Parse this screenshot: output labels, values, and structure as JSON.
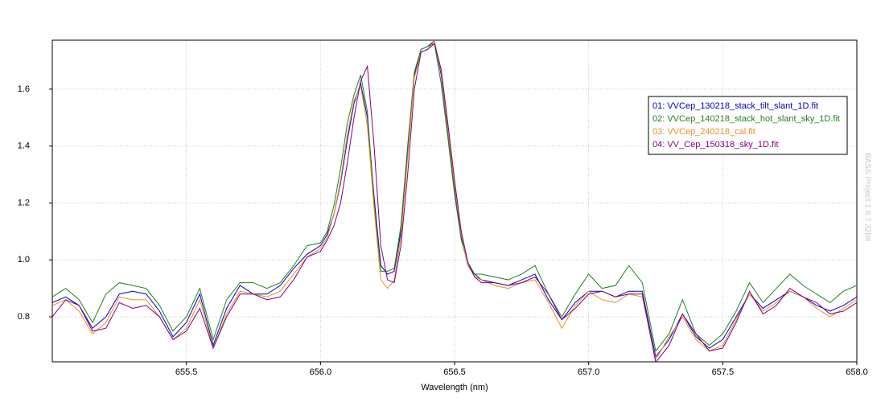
{
  "chart_data": {
    "type": "line",
    "xlabel": "Wavelength (nm)",
    "watermark": "BASS Project 1.9.7 32bit",
    "xlim": [
      655.0,
      658.0
    ],
    "ylim": [
      0.642,
      1.772
    ],
    "xticks": [
      655.5,
      {
        "value": 656.0,
        "label": "656.0"
      },
      656.5,
      {
        "value": 657.0,
        "label": "657.0"
      },
      657.5,
      {
        "value": 658.0,
        "label": "658.0"
      }
    ],
    "yticks": [
      0.8,
      {
        "value": 1.0,
        "label": "1.0"
      },
      1.2,
      1.4,
      1.6
    ],
    "grid": true,
    "legend": "upper right",
    "x": [
      655.0,
      655.05,
      655.1,
      655.15,
      655.2,
      655.25,
      655.3,
      655.35,
      655.4,
      655.45,
      655.5,
      655.55,
      655.6,
      655.65,
      655.7,
      655.75,
      655.8,
      655.85,
      655.9,
      655.95,
      656.0,
      656.025,
      656.05,
      656.075,
      656.1,
      656.125,
      656.15,
      656.175,
      656.2,
      656.225,
      656.25,
      656.275,
      656.3,
      656.325,
      656.35,
      656.375,
      656.4,
      656.425,
      656.45,
      656.475,
      656.5,
      656.525,
      656.55,
      656.575,
      656.6,
      656.65,
      656.7,
      656.75,
      656.8,
      656.85,
      656.9,
      656.95,
      657.0,
      657.05,
      657.1,
      657.15,
      657.2,
      657.25,
      657.3,
      657.35,
      657.4,
      657.45,
      657.5,
      657.55,
      657.6,
      657.65,
      657.7,
      657.75,
      657.8,
      657.85,
      657.9,
      657.95,
      658.0
    ],
    "series": [
      {
        "name": "01: VVCep_130218_stack_tilt_slant_1D.fit",
        "color": "#0000c0",
        "values": [
          0.85,
          0.87,
          0.84,
          0.76,
          0.8,
          0.88,
          0.89,
          0.88,
          0.82,
          0.73,
          0.78,
          0.88,
          0.7,
          0.83,
          0.91,
          0.88,
          0.88,
          0.91,
          0.97,
          1.02,
          1.05,
          1.09,
          1.16,
          1.27,
          1.42,
          1.55,
          1.62,
          1.5,
          1.22,
          0.98,
          0.95,
          0.96,
          1.1,
          1.38,
          1.65,
          1.74,
          1.75,
          1.77,
          1.65,
          1.45,
          1.25,
          1.08,
          0.98,
          0.95,
          0.93,
          0.92,
          0.91,
          0.93,
          0.95,
          0.86,
          0.79,
          0.85,
          0.89,
          0.89,
          0.87,
          0.89,
          0.89,
          0.66,
          0.72,
          0.81,
          0.73,
          0.69,
          0.72,
          0.8,
          0.88,
          0.83,
          0.86,
          0.89,
          0.87,
          0.84,
          0.82,
          0.84,
          0.87
        ]
      },
      {
        "name": "02: VVCep_140218_stack_hot_slant_sky_1D.fit",
        "color": "#208020",
        "values": [
          0.87,
          0.9,
          0.86,
          0.78,
          0.88,
          0.92,
          0.91,
          0.9,
          0.84,
          0.75,
          0.8,
          0.9,
          0.72,
          0.86,
          0.92,
          0.92,
          0.9,
          0.92,
          0.98,
          1.05,
          1.06,
          1.1,
          1.19,
          1.32,
          1.48,
          1.58,
          1.65,
          1.52,
          1.2,
          0.96,
          0.96,
          0.97,
          1.12,
          1.4,
          1.66,
          1.74,
          1.75,
          1.76,
          1.62,
          1.43,
          1.23,
          1.07,
          0.99,
          0.95,
          0.95,
          0.94,
          0.93,
          0.95,
          0.98,
          0.88,
          0.8,
          0.88,
          0.95,
          0.9,
          0.91,
          0.98,
          0.92,
          0.68,
          0.74,
          0.86,
          0.74,
          0.7,
          0.74,
          0.82,
          0.92,
          0.85,
          0.9,
          0.95,
          0.91,
          0.88,
          0.85,
          0.89,
          0.91
        ]
      },
      {
        "name": "03: VVCep_240218_cal.fit",
        "color": "#e89020",
        "values": [
          0.84,
          0.86,
          0.82,
          0.74,
          0.78,
          0.87,
          0.86,
          0.86,
          0.8,
          0.72,
          0.76,
          0.86,
          0.69,
          0.81,
          0.89,
          0.88,
          0.87,
          0.89,
          0.95,
          1.01,
          1.04,
          1.08,
          1.16,
          1.28,
          1.44,
          1.56,
          1.61,
          1.47,
          1.18,
          0.93,
          0.9,
          0.93,
          1.08,
          1.36,
          1.64,
          1.73,
          1.74,
          1.77,
          1.66,
          1.46,
          1.26,
          1.09,
          0.98,
          0.94,
          0.93,
          0.91,
          0.9,
          0.92,
          0.93,
          0.85,
          0.76,
          0.84,
          0.89,
          0.86,
          0.85,
          0.88,
          0.87,
          0.65,
          0.73,
          0.8,
          0.72,
          0.68,
          0.7,
          0.79,
          0.88,
          0.82,
          0.85,
          0.89,
          0.87,
          0.83,
          0.8,
          0.83,
          0.86
        ]
      },
      {
        "name": "04: VV_Cep_150318_sky_1D.fit",
        "color": "#800080",
        "values": [
          0.8,
          0.86,
          0.84,
          0.75,
          0.76,
          0.85,
          0.83,
          0.84,
          0.8,
          0.72,
          0.75,
          0.83,
          0.69,
          0.8,
          0.88,
          0.88,
          0.86,
          0.87,
          0.93,
          1.01,
          1.03,
          1.07,
          1.12,
          1.2,
          1.34,
          1.5,
          1.63,
          1.68,
          1.4,
          1.05,
          0.93,
          0.92,
          1.05,
          1.3,
          1.6,
          1.73,
          1.74,
          1.76,
          1.67,
          1.48,
          1.28,
          1.1,
          0.99,
          0.94,
          0.92,
          0.92,
          0.91,
          0.92,
          0.94,
          0.88,
          0.79,
          0.83,
          0.88,
          0.89,
          0.87,
          0.88,
          0.88,
          0.64,
          0.7,
          0.81,
          0.74,
          0.68,
          0.69,
          0.78,
          0.89,
          0.81,
          0.84,
          0.9,
          0.87,
          0.85,
          0.81,
          0.82,
          0.85
        ]
      }
    ]
  }
}
